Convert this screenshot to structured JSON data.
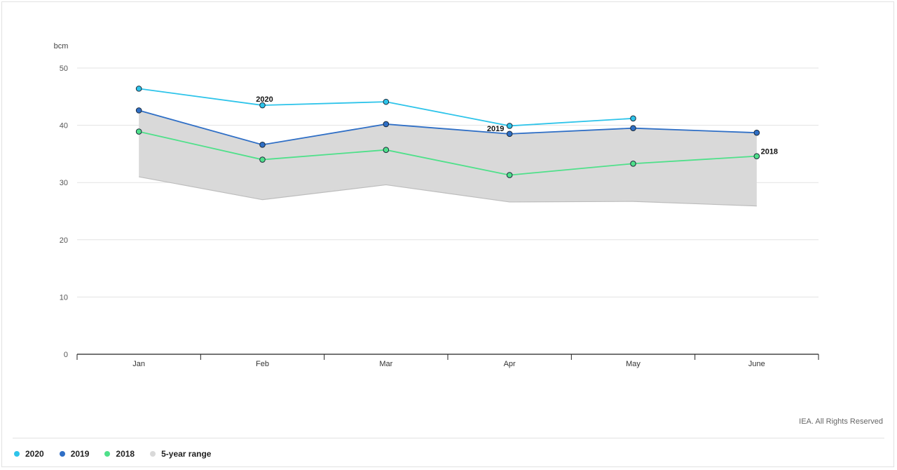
{
  "colors": {
    "s2020": "#2ec4ea",
    "s2019": "#2f6fc6",
    "s2018": "#4fe08a",
    "range": "#d9d9d9",
    "range_edge": "#bdbdbd"
  },
  "chart_data": {
    "type": "line",
    "ylabel": "bcm",
    "ylim": [
      0,
      50
    ],
    "yticks": [
      0,
      10,
      20,
      30,
      40,
      50
    ],
    "categories": [
      "Jan",
      "Feb",
      "Mar",
      "Apr",
      "May",
      "June"
    ],
    "grid": true,
    "legend_position": "bottom-left",
    "series": [
      {
        "name": "2020",
        "key": "s2020",
        "values": [
          46.4,
          43.5,
          44.1,
          39.9,
          41.2,
          null
        ]
      },
      {
        "name": "2019",
        "key": "s2019",
        "values": [
          42.6,
          36.6,
          40.2,
          38.5,
          39.5,
          38.7
        ]
      },
      {
        "name": "2018",
        "key": "s2018",
        "values": [
          38.9,
          34.0,
          35.7,
          31.3,
          33.3,
          34.6
        ]
      }
    ],
    "range": {
      "name": "5-year range",
      "lower": [
        31.0,
        27.0,
        29.6,
        26.6,
        26.7,
        25.9
      ],
      "upper": [
        42.6,
        36.6,
        40.2,
        38.5,
        39.5,
        38.7
      ]
    },
    "annotations": [
      {
        "text": "2020",
        "series": "s2020",
        "index": 1
      },
      {
        "text": "2019",
        "series": "s2019",
        "index": 3
      },
      {
        "text": "2018",
        "series": "s2018",
        "index": 5
      }
    ]
  },
  "credit": "IEA. All Rights Reserved",
  "legend": [
    {
      "label": "2020",
      "key": "s2020"
    },
    {
      "label": "2019",
      "key": "s2019"
    },
    {
      "label": "2018",
      "key": "s2018"
    },
    {
      "label": "5-year range",
      "key": "range"
    }
  ]
}
